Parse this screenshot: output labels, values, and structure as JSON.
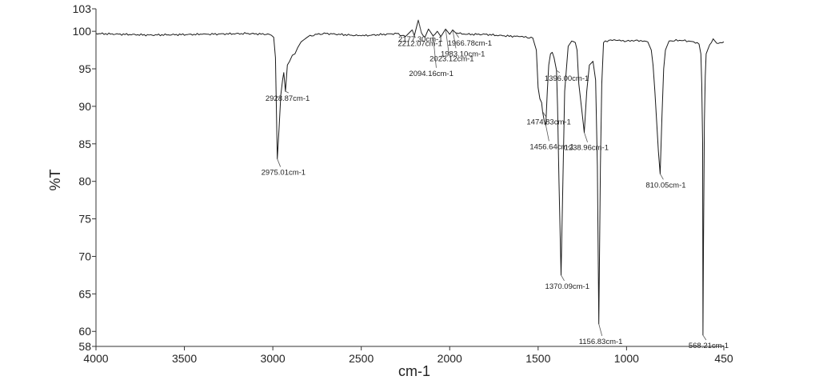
{
  "chart_data": {
    "type": "line",
    "xlabel": "cm-1",
    "ylabel": "%T",
    "xlim": [
      4000,
      450
    ],
    "ylim": [
      58,
      103
    ],
    "x_reversed": true,
    "grid": false,
    "line_color": "#1a1a1a",
    "x_ticks": [
      "4000",
      "3500",
      "3000",
      "2500",
      "2000",
      "1500",
      "1000",
      "450"
    ],
    "y_ticks": [
      "58",
      "60",
      "65",
      "70",
      "75",
      "80",
      "85",
      "90",
      "95",
      "100",
      "103"
    ],
    "series": [
      {
        "x": [
          4000,
          3700,
          3400,
          3150,
          3020,
          2995,
          2985,
          2975.01,
          2965,
          2955,
          2945,
          2938,
          2928.87,
          2918,
          2905,
          2890,
          2875,
          2860,
          2840,
          2800,
          2750,
          2700,
          2500,
          2300,
          2250,
          2212.07,
          2200,
          2177.3,
          2160,
          2140,
          2120,
          2094.16,
          2070,
          2050,
          2023.12,
          2000,
          1983.1,
          1966.78,
          1950,
          1900,
          1800,
          1700,
          1600,
          1530,
          1510,
          1500,
          1490,
          1480,
          1474.83,
          1465,
          1456.64,
          1448,
          1440,
          1430,
          1420,
          1410,
          1396,
          1390,
          1382,
          1370.09,
          1360,
          1350,
          1330,
          1310,
          1290,
          1280,
          1270,
          1238.96,
          1225,
          1210,
          1190,
          1175,
          1165,
          1156.83,
          1148,
          1140,
          1130,
          1100,
          1060,
          1000,
          950,
          900,
          880,
          860,
          850,
          840,
          830,
          820,
          810.05,
          800,
          790,
          780,
          760,
          700,
          650,
          620,
          600,
          590,
          580,
          575,
          570,
          568.21,
          565,
          560,
          555,
          550,
          530,
          520,
          510,
          500,
          490,
          470,
          450
        ],
        "y": [
          99.7,
          99.5,
          99.6,
          99.7,
          99.6,
          99.2,
          96.5,
          83.0,
          87.0,
          91.5,
          93.5,
          94.5,
          92.0,
          95.5,
          96.0,
          96.8,
          97.0,
          97.8,
          98.6,
          99.3,
          99.6,
          99.7,
          99.4,
          99.7,
          99.3,
          100.2,
          99.4,
          101.5,
          99.8,
          99.2,
          100.3,
          99.4,
          100.0,
          99.3,
          100.3,
          99.6,
          100.2,
          99.8,
          99.7,
          99.6,
          99.6,
          99.4,
          99.3,
          99.1,
          97.5,
          92.5,
          91.0,
          90.5,
          89.3,
          88.0,
          87.5,
          92.0,
          95.5,
          97.0,
          97.2,
          96.5,
          94.8,
          90.0,
          80.0,
          67.5,
          80.0,
          92.0,
          98.0,
          98.7,
          98.5,
          97.5,
          93.0,
          86.5,
          92.0,
          95.5,
          96.0,
          93.5,
          82.0,
          61.0,
          82.0,
          93.0,
          98.5,
          98.8,
          98.8,
          98.7,
          98.8,
          98.7,
          98.6,
          97.5,
          95.5,
          92.0,
          88.0,
          84.0,
          81.0,
          88.5,
          95.0,
          97.5,
          98.7,
          98.8,
          98.7,
          98.6,
          98.5,
          98.3,
          97.0,
          93.0,
          85.0,
          59.5,
          72.0,
          88.0,
          94.0,
          97.0,
          98.2,
          98.5,
          99.0,
          98.7,
          98.4,
          98.5,
          98.6
        ]
      }
    ],
    "annotations": [
      {
        "text": "2975.01cm-1",
        "x": 2975.01,
        "y": 83.0
      },
      {
        "text": "2928.87cm-1",
        "x": 2928.87,
        "y": 92.0
      },
      {
        "text": "2212.07cm-1",
        "x": 2212.07,
        "y": 100.2
      },
      {
        "text": "2177.30cm-1",
        "x": 2177.3,
        "y": 101.5
      },
      {
        "text": "2094.16cm-1",
        "x": 2094.16,
        "y": 99.4
      },
      {
        "text": "2023.12cm-1",
        "x": 2023.12,
        "y": 100.3
      },
      {
        "text": "1983.10cm-1",
        "x": 1983.1,
        "y": 100.2
      },
      {
        "text": "1966.78cm-1",
        "x": 1966.78,
        "y": 99.8
      },
      {
        "text": "1474.83cm-1",
        "x": 1474.83,
        "y": 89.3
      },
      {
        "text": "1456.64cm-1",
        "x": 1456.64,
        "y": 87.5
      },
      {
        "text": "1396.00cm-1",
        "x": 1396,
        "y": 94.8
      },
      {
        "text": "1370.09cm-1",
        "x": 1370.09,
        "y": 67.5
      },
      {
        "text": "1238.96cm-1",
        "x": 1238.96,
        "y": 86.5
      },
      {
        "text": "1156.83cm-1",
        "x": 1156.83,
        "y": 61.0
      },
      {
        "text": "810.05cm-1",
        "x": 810.05,
        "y": 81.0
      },
      {
        "text": "568.21cm-1",
        "x": 568.21,
        "y": 59.5
      }
    ]
  }
}
